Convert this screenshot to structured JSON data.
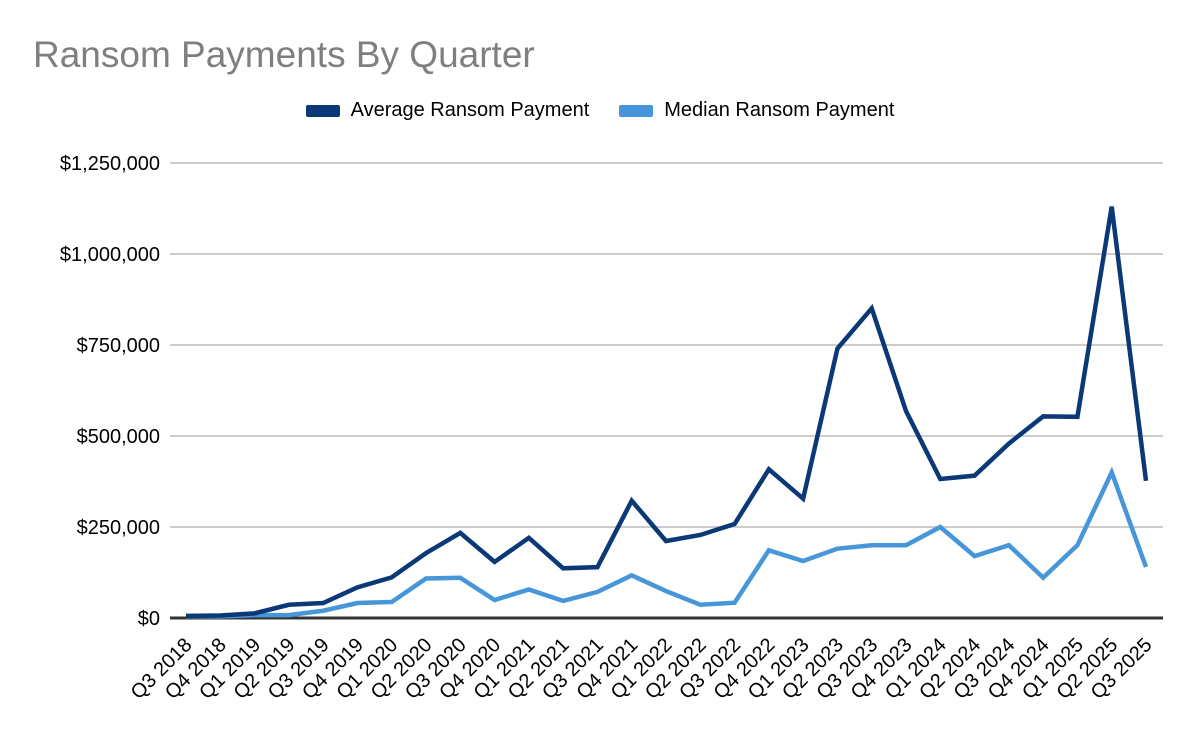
{
  "title": "Ransom Payments By Quarter",
  "legend": {
    "items": [
      {
        "label": "Average Ransom Payment",
        "color": "#0b3876"
      },
      {
        "label": "Median Ransom Payment",
        "color": "#4796d9"
      }
    ]
  },
  "chart_data": {
    "type": "line",
    "title": "Ransom Payments By Quarter",
    "categories": [
      "Q3 2018",
      "Q4 2018",
      "Q1 2019",
      "Q2 2019",
      "Q3 2019",
      "Q4 2019",
      "Q1 2020",
      "Q2 2020",
      "Q3 2020",
      "Q4 2020",
      "Q1 2021",
      "Q2 2021",
      "Q3 2021",
      "Q4 2021",
      "Q1 2022",
      "Q2 2022",
      "Q3 2022",
      "Q4 2022",
      "Q1 2023",
      "Q2 2023",
      "Q3 2023",
      "Q4 2023",
      "Q1 2024",
      "Q2 2024",
      "Q3 2024",
      "Q4 2024",
      "Q1 2025",
      "Q2 2025",
      "Q3 2025"
    ],
    "series": [
      {
        "name": "Average Ransom Payment",
        "color": "#0b3876",
        "values": [
          5974,
          6733,
          12762,
          36295,
          41198,
          84116,
          111605,
          178254,
          233817,
          154108,
          220298,
          136576,
          139739,
          322168,
          211529,
          228125,
          258143,
          408644,
          327883,
          740144,
          850700,
          568705,
          381980,
          391015,
          479237,
          553959,
          552777,
          1130070,
          376941
        ]
      },
      {
        "name": "Median Ransom Payment",
        "color": "#4796d9",
        "values": [
          5000,
          4000,
          8000,
          8000,
          20000,
          41179,
          44021,
          108597,
          110532,
          49450,
          78398,
          47008,
          71674,
          117116,
          73906,
          36360,
          41987,
          185972,
          156698,
          190424,
          200000,
          200000,
          250000,
          170000,
          200000,
          110890,
          200000,
          400000,
          140000
        ]
      }
    ],
    "ylim": [
      0,
      1250000
    ],
    "y_ticks": [
      0,
      250000,
      500000,
      750000,
      1000000,
      1250000
    ],
    "y_tick_labels": [
      "$0",
      "$250,000",
      "$500,000",
      "$750,000",
      "$1,000,000",
      "$1,250,000"
    ],
    "grid": true,
    "legend_position": "top",
    "x_label_rotation_deg": 45,
    "colors": {
      "title_text": "#7f7f7f",
      "grid_line": "#cccccc",
      "axis_line": "#333333",
      "tick_text": "#000000",
      "background": "#ffffff"
    }
  }
}
